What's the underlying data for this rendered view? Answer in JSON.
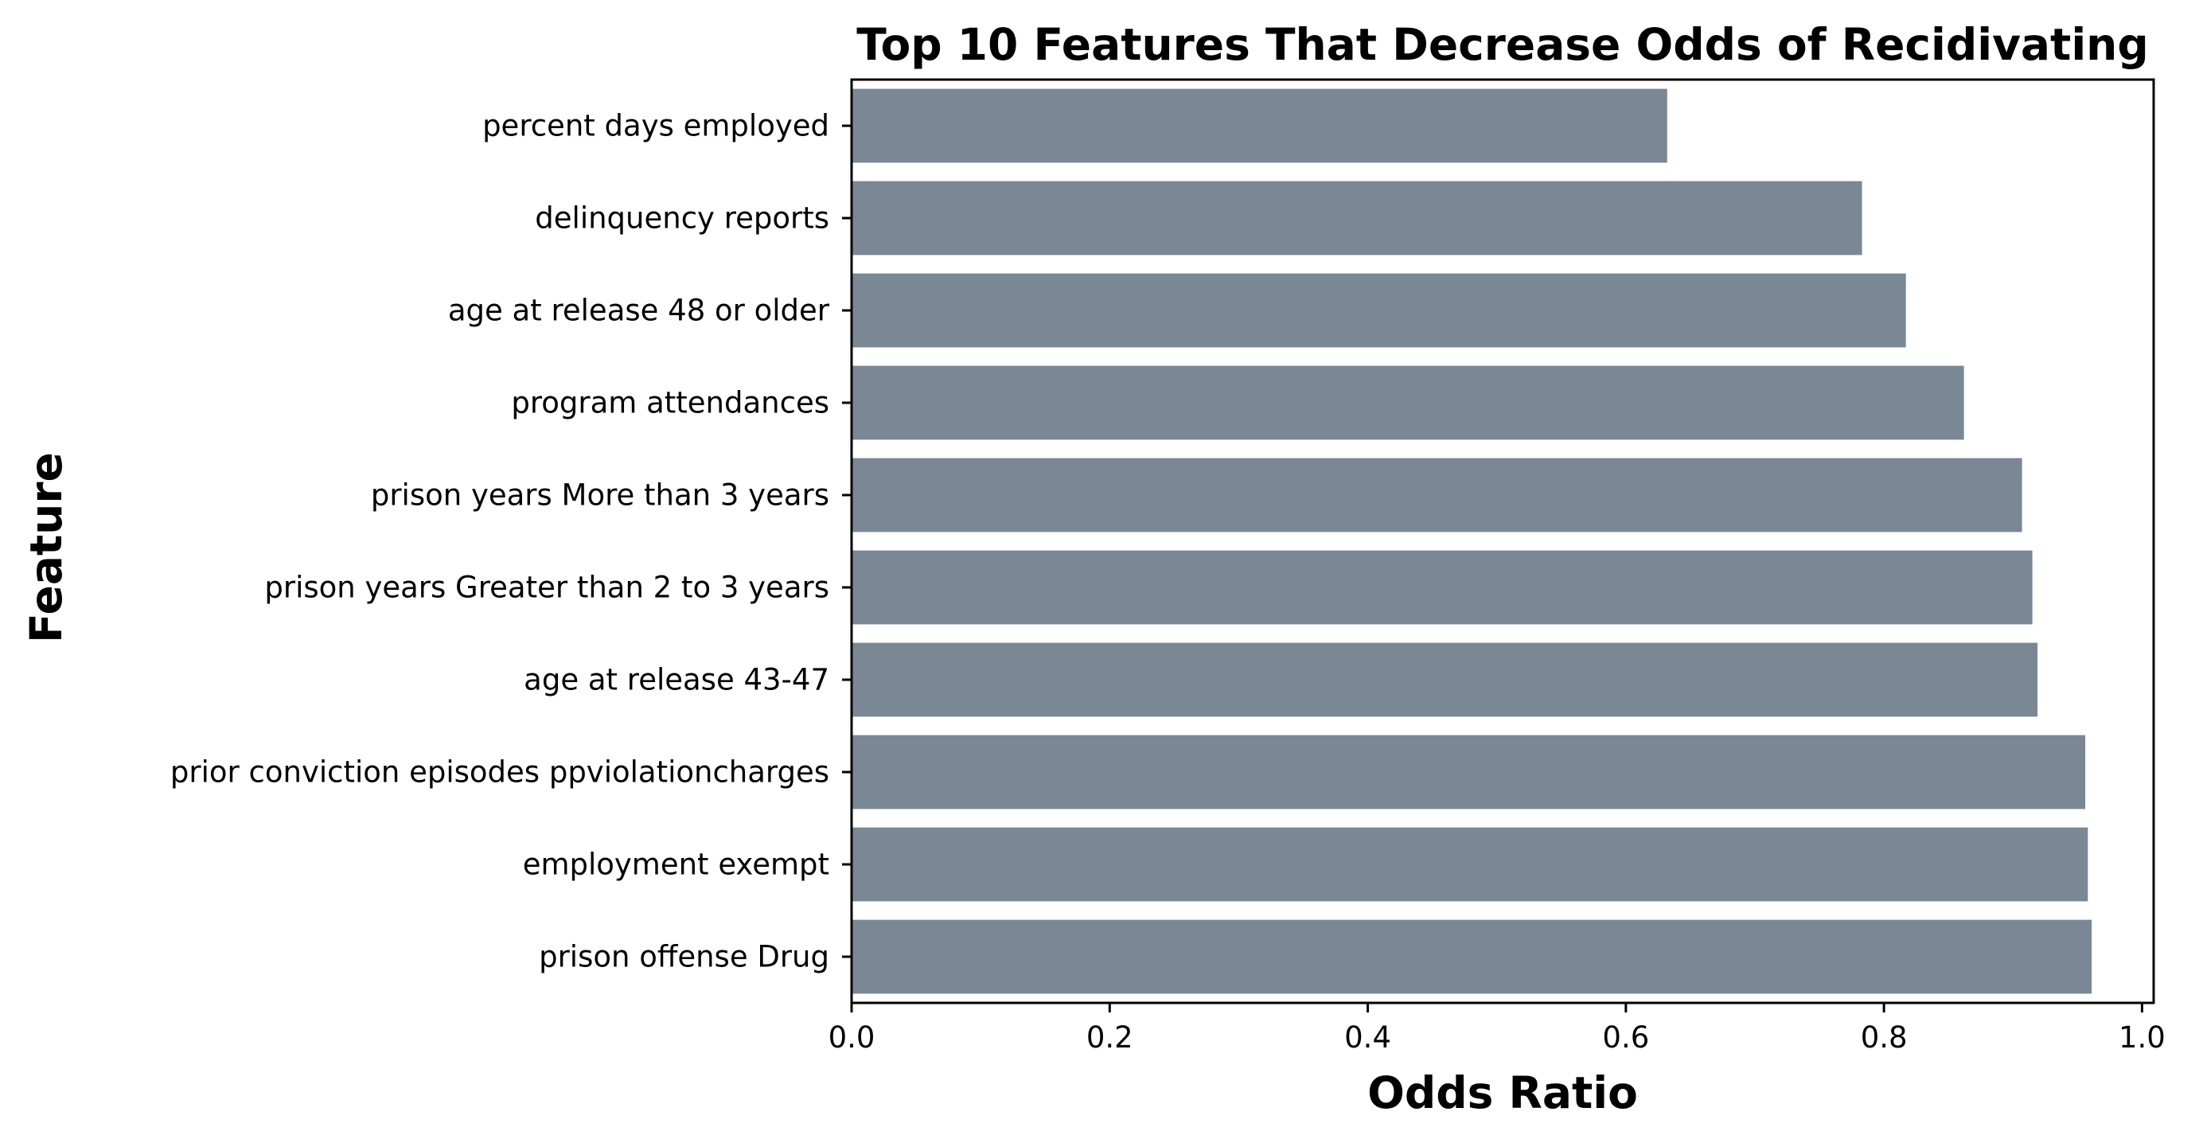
{
  "chart_data": {
    "type": "bar",
    "orientation": "horizontal",
    "title": "Top 10 Features That Decrease Odds of Recidivating",
    "xlabel": "Odds Ratio",
    "ylabel": "Feature",
    "categories": [
      "percent days employed",
      "delinquency reports",
      "age at release 48 or older",
      "program attendances",
      "prison years More than 3 years",
      "prison years Greater than 2 to 3 years",
      "age at release 43-47",
      "prior conviction episodes ppviolationcharges",
      "employment exempt",
      "prison offense Drug"
    ],
    "values": [
      0.632,
      0.783,
      0.817,
      0.862,
      0.907,
      0.915,
      0.919,
      0.956,
      0.958,
      0.961
    ],
    "xlim": [
      0,
      1.009
    ],
    "xticks": [
      "0.0",
      "0.2",
      "0.4",
      "0.6",
      "0.8",
      "1.0"
    ],
    "grid": false,
    "bar_color": "#7a8794"
  }
}
